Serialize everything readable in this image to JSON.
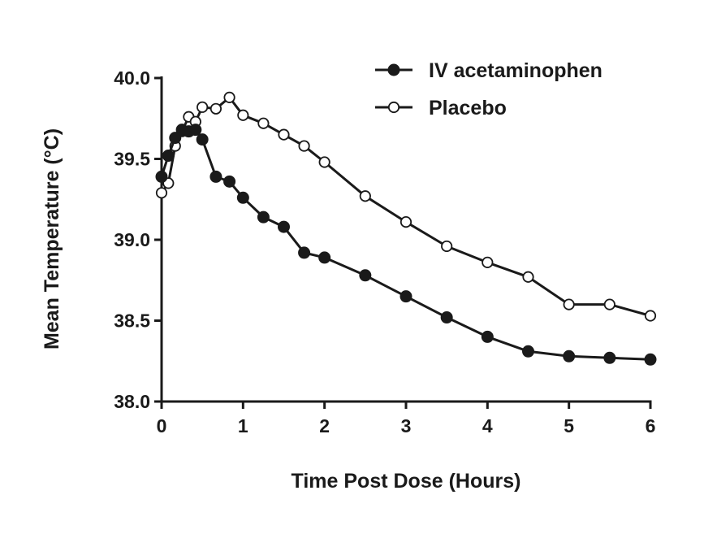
{
  "chart_data": {
    "type": "line",
    "title": "",
    "xlabel": "Time Post Dose (Hours)",
    "ylabel": "Mean Temperature (°C)",
    "xlim": [
      0,
      6
    ],
    "ylim": [
      38.0,
      40.0
    ],
    "xticks": [
      0,
      1,
      2,
      3,
      4,
      5,
      6
    ],
    "yticks": [
      38.0,
      38.5,
      39.0,
      39.5,
      40.0
    ],
    "xtick_labels": [
      "0",
      "1",
      "2",
      "3",
      "4",
      "5",
      "6"
    ],
    "ytick_labels": [
      "38.0",
      "38.5",
      "39.0",
      "39.5",
      "40.0"
    ],
    "grid": false,
    "legend_position": "top-right",
    "series": [
      {
        "name": "IV acetaminophen",
        "marker": "filled-circle",
        "color": "#1a1a1a",
        "x": [
          0,
          0.083,
          0.167,
          0.25,
          0.333,
          0.417,
          0.5,
          0.667,
          0.833,
          1,
          1.25,
          1.5,
          1.75,
          2,
          2.5,
          3,
          3.5,
          4,
          4.5,
          5,
          5.5,
          6
        ],
        "y": [
          39.39,
          39.52,
          39.63,
          39.68,
          39.67,
          39.68,
          39.62,
          39.39,
          39.36,
          39.26,
          39.14,
          39.08,
          38.92,
          38.89,
          38.78,
          38.65,
          38.52,
          38.4,
          38.31,
          38.28,
          38.27,
          38.26
        ]
      },
      {
        "name": "Placebo",
        "marker": "open-circle",
        "color": "#1a1a1a",
        "x": [
          0,
          0.083,
          0.167,
          0.25,
          0.333,
          0.417,
          0.5,
          0.667,
          0.833,
          1,
          1.25,
          1.5,
          1.75,
          2,
          2.5,
          3,
          3.5,
          4,
          4.5,
          5,
          5.5,
          6
        ],
        "y": [
          39.29,
          39.35,
          39.58,
          39.67,
          39.76,
          39.73,
          39.82,
          39.81,
          39.88,
          39.77,
          39.72,
          39.65,
          39.58,
          39.48,
          39.27,
          39.11,
          38.96,
          38.86,
          38.77,
          38.6,
          38.6,
          38.53
        ]
      }
    ]
  }
}
